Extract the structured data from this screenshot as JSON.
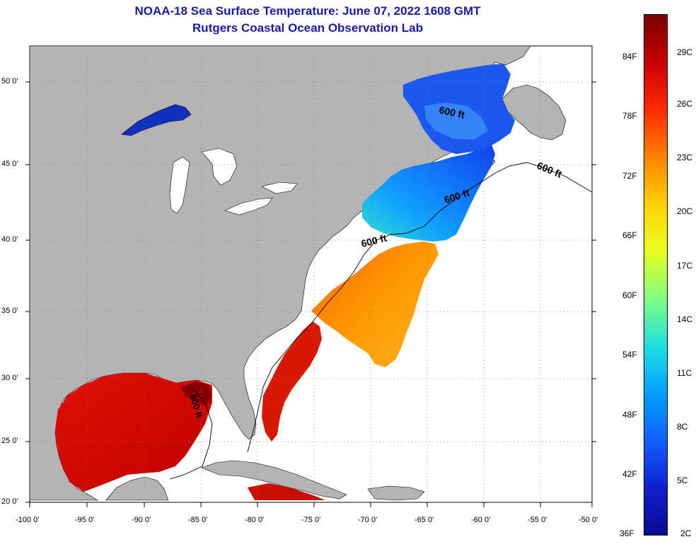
{
  "title": "NOAA-18 Sea Surface Temperature:  June 07, 2022 1608 GMT",
  "subtitle": "Rutgers Coastal Ocean Observation Lab",
  "x_ticks": [
    "-100 0'",
    "-95 0'",
    "-90 0'",
    "-85 0'",
    "-80 0'",
    "-75 0'",
    "-70 0'",
    "-65 0'",
    "-60 0'",
    "-55 0'",
    "-50 0'"
  ],
  "y_ticks": [
    "50 0'",
    "45 0'",
    "40 0'",
    "35 0'",
    "30 0'",
    "25 0'",
    "20 0'"
  ],
  "colorbar": {
    "f_labels": [
      "84F",
      "78F",
      "72F",
      "66F",
      "60F",
      "54F",
      "48F",
      "42F",
      "36F"
    ],
    "c_labels": [
      "29C",
      "26C",
      "23C",
      "20C",
      "17C",
      "14C",
      "11C",
      "8C",
      "5C",
      "2C"
    ],
    "colors": [
      "#7a0000",
      "#c80000",
      "#ff2a00",
      "#ff8000",
      "#ffd000",
      "#e8ff20",
      "#80ff80",
      "#20e0e0",
      "#00a0ff",
      "#1060ff",
      "#1020d0",
      "#0a0a90"
    ]
  },
  "contour_labels": [
    "600 ft",
    "600 ft",
    "600 ft",
    "600 ft",
    "600 ft"
  ],
  "colors": {
    "land": "#b4b4b4",
    "water": "#ffffff",
    "title": "#1a1aaa"
  }
}
